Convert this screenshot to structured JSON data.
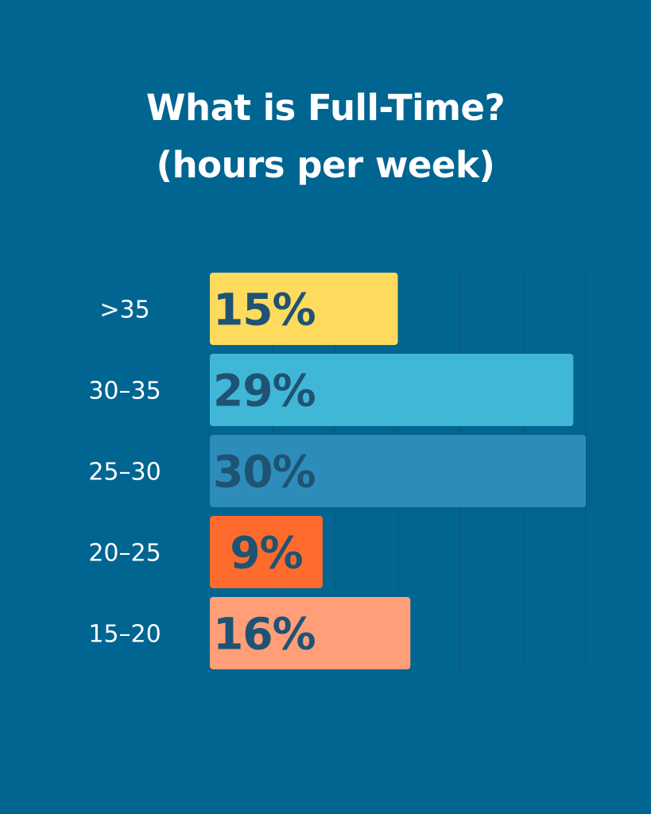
{
  "chart_data": {
    "type": "bar",
    "orientation": "horizontal",
    "title_lines": [
      "What is Full-Time?",
      "(hours per week)"
    ],
    "categories": [
      ">35",
      "30–35",
      "25–30",
      "20–25",
      "15–20"
    ],
    "values": [
      15,
      29,
      30,
      9,
      16
    ],
    "value_labels": [
      "15%",
      "29%",
      "30%",
      "9%",
      "16%"
    ],
    "unit": "%",
    "xlim": [
      0,
      30
    ],
    "grid": true,
    "legend": "none"
  },
  "colors": {
    "background": "#006591",
    "bars": [
      "#FEDB5C",
      "#41B7D7",
      "#2E8CBB",
      "#FF6B2C",
      "#FF9E78"
    ],
    "value_text": "#1E5373",
    "gridline": "#0B5B7E"
  }
}
